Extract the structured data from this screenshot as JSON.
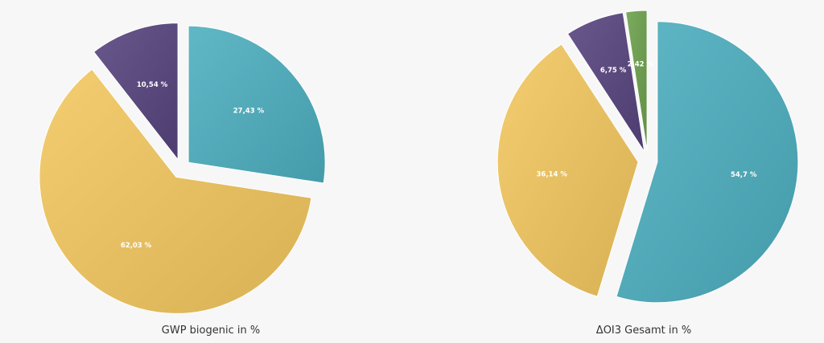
{
  "colors": {
    "teal": "#52a9b8",
    "gold": "#e6bf62",
    "purple": "#5b4a7e",
    "green": "#6e9d52"
  },
  "chart_data": [
    {
      "type": "pie",
      "title": "GWP biogenic in %",
      "slices": [
        {
          "value": 27.43,
          "label": "27,43 %",
          "color": "teal"
        },
        {
          "value": 62.03,
          "label": "62,03 %",
          "color": "gold"
        },
        {
          "value": 10.54,
          "label": "10,54 %",
          "color": "purple"
        }
      ]
    },
    {
      "type": "pie",
      "title": "ΔOI3 Gesamt in %",
      "slices": [
        {
          "value": 54.7,
          "label": "54,7 %",
          "color": "teal"
        },
        {
          "value": 36.14,
          "label": "36,14 %",
          "color": "gold"
        },
        {
          "value": 6.75,
          "label": "6,75 %",
          "color": "purple"
        },
        {
          "value": 2.42,
          "label": "2,42 %",
          "color": "green"
        }
      ]
    }
  ]
}
